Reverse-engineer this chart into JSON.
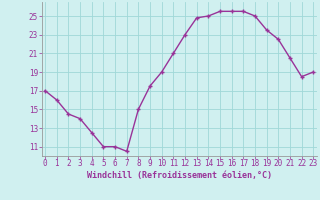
{
  "x": [
    0,
    1,
    2,
    3,
    4,
    5,
    6,
    7,
    8,
    9,
    10,
    11,
    12,
    13,
    14,
    15,
    16,
    17,
    18,
    19,
    20,
    21,
    22,
    23
  ],
  "y": [
    17,
    16,
    14.5,
    14,
    12.5,
    11,
    11,
    10.5,
    15,
    17.5,
    19,
    21,
    23,
    24.8,
    25,
    25.5,
    25.5,
    25.5,
    25,
    23.5,
    22.5,
    20.5,
    18.5,
    19
  ],
  "line_color": "#993399",
  "marker": "+",
  "xlabel": "Windchill (Refroidissement éolien,°C)",
  "xlabel_fontsize": 6.0,
  "ytick_labels": [
    "11",
    "13",
    "15",
    "17",
    "19",
    "21",
    "23",
    "25"
  ],
  "ytick_vals": [
    11,
    13,
    15,
    17,
    19,
    21,
    23,
    25
  ],
  "xtick_vals": [
    0,
    1,
    2,
    3,
    4,
    5,
    6,
    7,
    8,
    9,
    10,
    11,
    12,
    13,
    14,
    15,
    16,
    17,
    18,
    19,
    20,
    21,
    22,
    23
  ],
  "xtick_labels": [
    "0",
    "1",
    "2",
    "3",
    "4",
    "5",
    "6",
    "7",
    "8",
    "9",
    "10",
    "11",
    "12",
    "13",
    "14",
    "15",
    "16",
    "17",
    "18",
    "19",
    "20",
    "21",
    "22",
    "23"
  ],
  "xlim": [
    -0.3,
    23.3
  ],
  "ylim": [
    10.0,
    26.5
  ],
  "bg_color": "#d0f0f0",
  "grid_color": "#a0d8d8",
  "tick_fontsize": 5.5,
  "linewidth": 1.0,
  "marker_size": 3.5,
  "marker_ew": 1.0
}
